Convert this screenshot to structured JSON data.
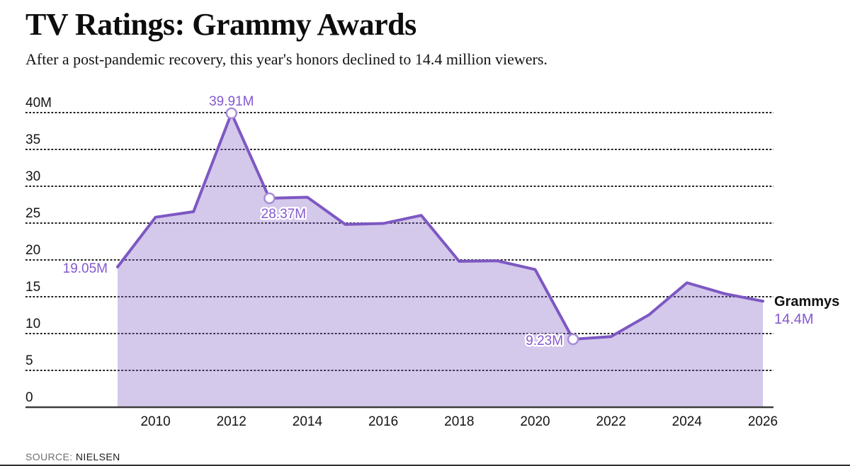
{
  "header": {
    "title": "TV Ratings: Grammy Awards",
    "subtitle": "After a post-pandemic recovery, this year's honors declined to 14.4 million viewers."
  },
  "source": {
    "label": "SOURCE:",
    "value": "NIELSEN"
  },
  "colors": {
    "line": "#7D58C2",
    "fill": "#7D58C2",
    "fill_opacity": 0.33,
    "marker_stroke": "#A78BD9",
    "marker_fill": "#ffffff",
    "annotation_text": "#8458D0",
    "annotation_halo": "#ffffff",
    "grid": "#1f1f1f",
    "axis": "#3d3d3d",
    "tick_text": "#141414",
    "end_label_name": "#111111",
    "end_label_value": "#8458D0"
  },
  "chart_data": {
    "type": "area",
    "title": "TV Ratings: Grammy Awards",
    "subtitle": "After a post-pandemic recovery, this year's honors declined to 14.4 million viewers.",
    "x": [
      2009,
      2010,
      2011,
      2012,
      2013,
      2014,
      2015,
      2016,
      2017,
      2018,
      2019,
      2020,
      2021,
      2022,
      2023,
      2024,
      2025,
      2026
    ],
    "series": [
      {
        "name": "Grammys",
        "values": [
          19.05,
          25.8,
          26.55,
          39.91,
          28.37,
          28.51,
          24.82,
          24.95,
          26.05,
          19.81,
          19.88,
          18.7,
          9.23,
          9.59,
          12.55,
          16.9,
          15.4,
          14.4
        ]
      }
    ],
    "ylim": [
      0,
      40
    ],
    "yticks": [
      40,
      35,
      30,
      25,
      20,
      15,
      10,
      5,
      0
    ],
    "ytick_labels": [
      "40M",
      "35",
      "30",
      "25",
      "20",
      "15",
      "10",
      "5",
      "0"
    ],
    "xticks": [
      2010,
      2012,
      2014,
      2016,
      2018,
      2020,
      2022,
      2024,
      2026
    ],
    "grid": "dashed-horizontal",
    "legend_position": "end-of-line",
    "annotations": [
      {
        "year": 2009,
        "value": 19.05,
        "text": "19.05M",
        "placement": "left",
        "marker": false
      },
      {
        "year": 2012,
        "value": 39.91,
        "text": "39.91M",
        "placement": "above",
        "marker": true
      },
      {
        "year": 2013,
        "value": 28.37,
        "text": "28.37M",
        "placement": "below",
        "marker": true
      },
      {
        "year": 2021,
        "value": 9.23,
        "text": "9.23M",
        "placement": "left",
        "marker": true
      }
    ],
    "end_label": {
      "name": "Grammys",
      "value": "14.4M"
    }
  }
}
